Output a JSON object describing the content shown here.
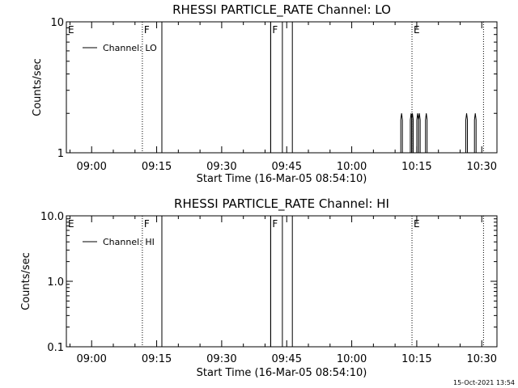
{
  "footer": "15-Oct-2021 13:54",
  "chart_data": [
    {
      "type": "line",
      "title": "RHESSI PARTICLE_RATE Channel: LO",
      "xlabel": "Start Time (16-Mar-05 08:54:10)",
      "ylabel": "Counts/sec",
      "yscale": "log",
      "ylim": [
        1,
        10
      ],
      "yticks": [
        {
          "v": 1,
          "label": "1"
        },
        {
          "v": 10,
          "label": "10"
        }
      ],
      "xlim_min": [
        534.17,
        633.5
      ],
      "xticks": [
        {
          "v": 540,
          "label": "09:00"
        },
        {
          "v": 555,
          "label": "09:15"
        },
        {
          "v": 570,
          "label": "09:30"
        },
        {
          "v": 585,
          "label": "09:45"
        },
        {
          "v": 600,
          "label": "10:00"
        },
        {
          "v": 615,
          "label": "10:15"
        },
        {
          "v": 630,
          "label": "10:30"
        }
      ],
      "legend": "Channel: LO",
      "legend_position": "top-left",
      "flags": [
        {
          "label": "E",
          "t": 534.17,
          "style": "none"
        },
        {
          "label": "F",
          "t": 551.7,
          "style": "dotted"
        },
        {
          "label": "F",
          "t": 581.3,
          "style": "solid"
        },
        {
          "label": "E",
          "t": 613.9,
          "style": "dotted"
        },
        {
          "label": "",
          "t": 630.4,
          "style": "dotted"
        }
      ],
      "gaps": [
        [
          556.2,
          581.3
        ],
        [
          584.0,
          586.3
        ]
      ],
      "spikes": [
        {
          "t": 611.5,
          "v": 2
        },
        {
          "t": 613.7,
          "v": 2
        },
        {
          "t": 614.0,
          "v": 2
        },
        {
          "t": 615.2,
          "v": 2
        },
        {
          "t": 615.6,
          "v": 2
        },
        {
          "t": 617.2,
          "v": 2
        },
        {
          "t": 626.5,
          "v": 2
        },
        {
          "t": 628.5,
          "v": 2
        }
      ]
    },
    {
      "type": "line",
      "title": "RHESSI PARTICLE_RATE Channel: HI",
      "xlabel": "Start Time (16-Mar-05 08:54:10)",
      "ylabel": "Counts/sec",
      "yscale": "log",
      "ylim": [
        0.1,
        10
      ],
      "yticks": [
        {
          "v": 0.1,
          "label": "0.1"
        },
        {
          "v": 1,
          "label": "1.0"
        },
        {
          "v": 10,
          "label": "10.0"
        }
      ],
      "xlim_min": [
        534.17,
        633.5
      ],
      "xticks": [
        {
          "v": 540,
          "label": "09:00"
        },
        {
          "v": 555,
          "label": "09:15"
        },
        {
          "v": 570,
          "label": "09:30"
        },
        {
          "v": 585,
          "label": "09:45"
        },
        {
          "v": 600,
          "label": "10:00"
        },
        {
          "v": 615,
          "label": "10:15"
        },
        {
          "v": 630,
          "label": "10:30"
        }
      ],
      "legend": "Channel: HI",
      "legend_position": "top-left",
      "flags": [
        {
          "label": "E",
          "t": 534.17,
          "style": "none"
        },
        {
          "label": "F",
          "t": 551.7,
          "style": "dotted"
        },
        {
          "label": "F",
          "t": 581.3,
          "style": "solid"
        },
        {
          "label": "E",
          "t": 613.9,
          "style": "dotted"
        },
        {
          "label": "",
          "t": 630.4,
          "style": "dotted"
        }
      ],
      "gaps": [
        [
          556.2,
          581.3
        ],
        [
          584.0,
          586.3
        ]
      ],
      "spikes": []
    }
  ]
}
